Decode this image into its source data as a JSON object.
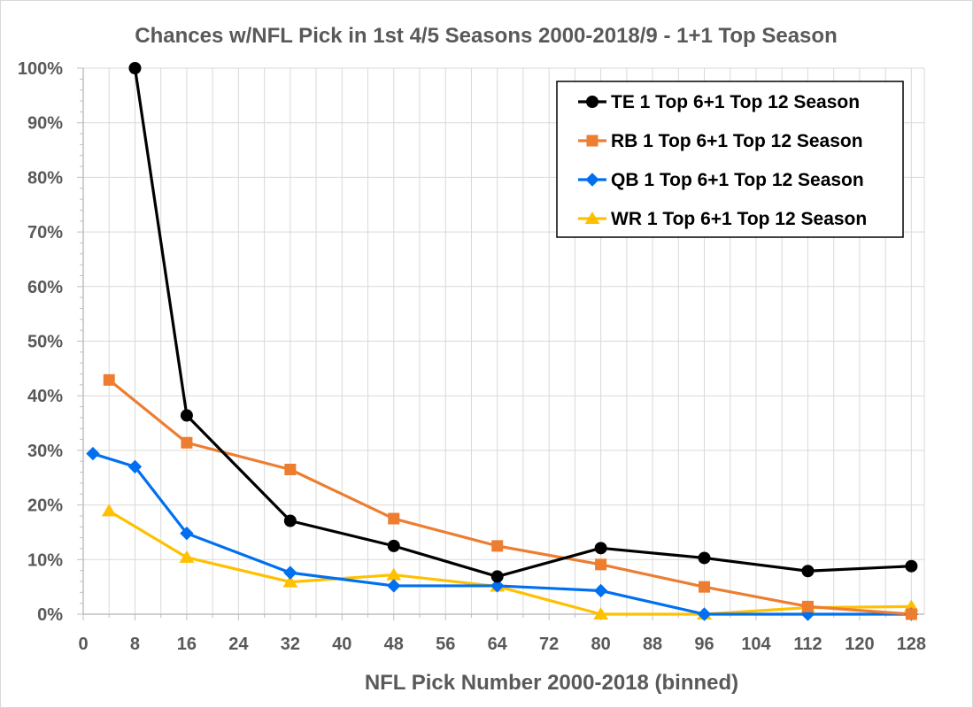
{
  "chart_data": {
    "type": "line",
    "title": "Chances w/NFL Pick in 1st 4/5 Seasons 2000-2018/9 - 1+1 Top Season",
    "xlabel": "NFL Pick Number 2000-2018 (binned)",
    "ylabel": "",
    "xlim": [
      0,
      130
    ],
    "ylim": [
      0,
      100
    ],
    "x_ticks": [
      0,
      8,
      16,
      24,
      32,
      40,
      48,
      56,
      64,
      72,
      80,
      88,
      96,
      104,
      112,
      120,
      128
    ],
    "y_ticks": [
      0,
      10,
      20,
      30,
      40,
      50,
      60,
      70,
      80,
      90,
      100
    ],
    "y_tick_labels": [
      "0%",
      "10%",
      "20%",
      "30%",
      "40%",
      "50%",
      "60%",
      "70%",
      "80%",
      "90%",
      "100%"
    ],
    "grid": true,
    "legend_position": "top-right",
    "series": [
      {
        "name": "TE 1 Top 6+1 Top 12 Season",
        "color": "#000000",
        "marker": "circle",
        "x": [
          8,
          16,
          32,
          48,
          64,
          80,
          96,
          112,
          128
        ],
        "y": [
          100,
          36.4,
          17.1,
          12.5,
          6.9,
          12.1,
          10.3,
          7.9,
          8.8
        ]
      },
      {
        "name": "RB 1 Top 6+1 Top 12 Season",
        "color": "#ed7d31",
        "marker": "square",
        "x": [
          4,
          16,
          32,
          48,
          64,
          80,
          96,
          112,
          128
        ],
        "y": [
          42.9,
          31.4,
          26.5,
          17.5,
          12.5,
          9.1,
          5.0,
          1.4,
          0.0
        ]
      },
      {
        "name": "QB 1 Top 6+1 Top 12 Season",
        "color": "#0070f0",
        "marker": "diamond",
        "x": [
          1.5,
          8,
          16,
          32,
          48,
          64,
          80,
          96,
          112,
          128
        ],
        "y": [
          29.4,
          27.0,
          14.8,
          7.6,
          5.2,
          5.2,
          4.3,
          0.0,
          0.0,
          0.0
        ]
      },
      {
        "name": "WR 1 Top 6+1 Top 12 Season",
        "color": "#ffc000",
        "marker": "triangle",
        "x": [
          4,
          16,
          32,
          48,
          64,
          80,
          96,
          112,
          128
        ],
        "y": [
          18.9,
          10.4,
          5.9,
          7.2,
          5.1,
          0.0,
          0.0,
          1.2,
          1.4
        ]
      }
    ]
  }
}
